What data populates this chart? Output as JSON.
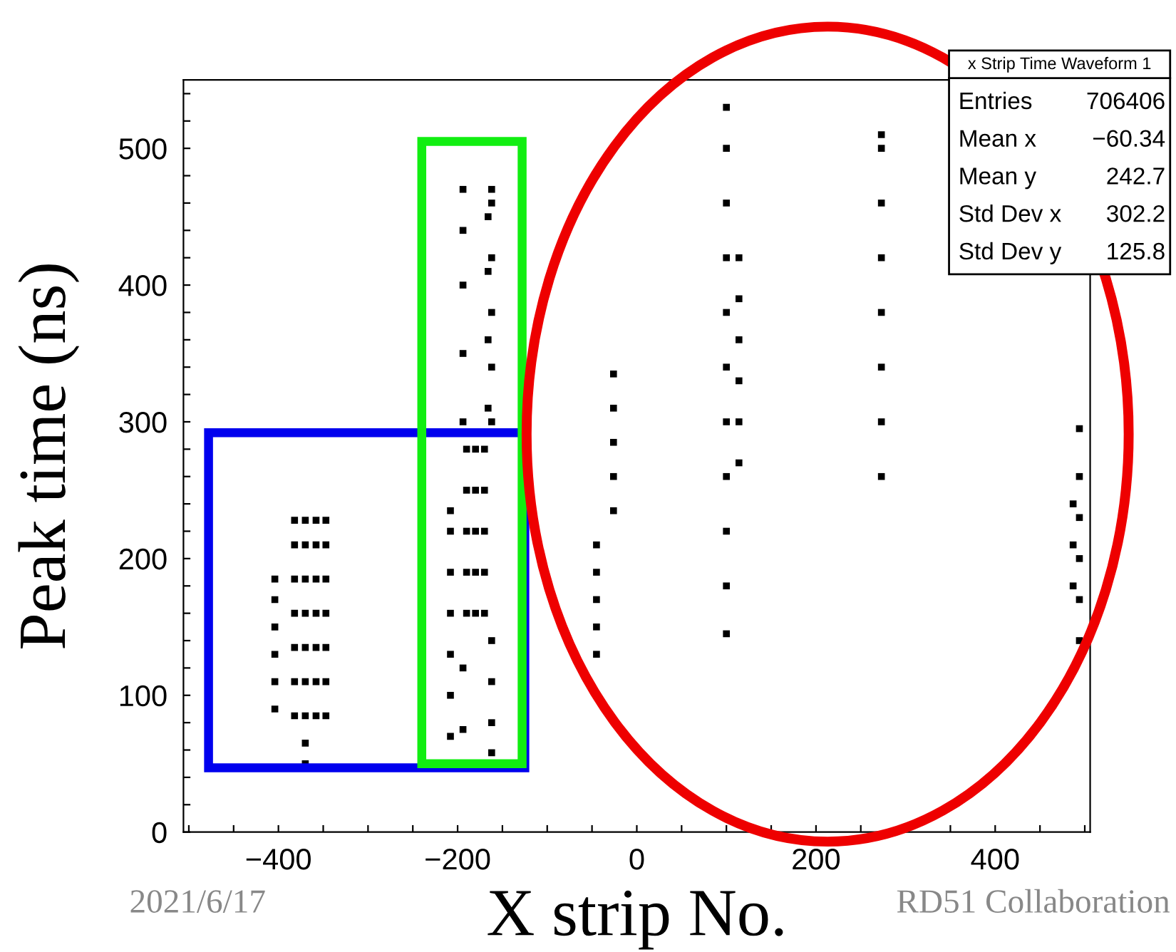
{
  "chart_data": {
    "type": "scatter",
    "xlabel": "X strip No.",
    "ylabel": "Peak time (ns)",
    "series": [
      {
        "color": "#000000",
        "x": [
          -404,
          -404,
          -404,
          -404,
          -404,
          -404,
          -382,
          -382,
          -382,
          -382,
          -382,
          -382,
          -382,
          -370,
          -370,
          -370,
          -370,
          -370,
          -370,
          -370,
          -370,
          -370,
          -358,
          -358,
          -358,
          -358,
          -358,
          -358,
          -358,
          -347,
          -347,
          -347,
          -347,
          -347,
          -347,
          -347,
          -208,
          -208,
          -208,
          -208,
          -208,
          -208,
          -208,
          -194,
          -194,
          -194,
          -194,
          -194,
          -194,
          -194,
          -190,
          -190,
          -190,
          -190,
          -190,
          -180,
          -180,
          -180,
          -180,
          -180,
          -170,
          -170,
          -170,
          -170,
          -170,
          -162,
          -162,
          -162,
          -162,
          -162,
          -162,
          -162,
          -162,
          -162,
          -162,
          -166,
          -166,
          -166,
          -166,
          -45,
          -45,
          -45,
          -45,
          -45,
          -26,
          -26,
          -26,
          -26,
          -26,
          100,
          100,
          100,
          100,
          100,
          100,
          100,
          100,
          100,
          100,
          100,
          114,
          114,
          114,
          114,
          114,
          114,
          273,
          273,
          273,
          273,
          273,
          273,
          273,
          273,
          494,
          494,
          494,
          494,
          494,
          494,
          487,
          487,
          487
        ],
        "values": [
          90,
          110,
          130,
          150,
          170,
          185,
          85,
          110,
          135,
          160,
          185,
          210,
          228,
          50,
          65,
          85,
          110,
          135,
          160,
          185,
          210,
          228,
          85,
          110,
          135,
          160,
          185,
          210,
          228,
          85,
          110,
          135,
          160,
          185,
          210,
          228,
          70,
          100,
          130,
          160,
          190,
          220,
          235,
          75,
          120,
          300,
          350,
          400,
          440,
          470,
          160,
          190,
          220,
          250,
          280,
          160,
          190,
          220,
          250,
          280,
          160,
          190,
          220,
          250,
          280,
          58,
          80,
          110,
          140,
          300,
          340,
          380,
          420,
          460,
          470,
          310,
          360,
          410,
          450,
          130,
          150,
          170,
          190,
          210,
          235,
          260,
          285,
          310,
          335,
          145,
          180,
          220,
          260,
          300,
          340,
          380,
          420,
          460,
          500,
          530,
          270,
          300,
          330,
          360,
          390,
          420,
          260,
          300,
          340,
          380,
          420,
          460,
          500,
          510,
          140,
          170,
          200,
          230,
          260,
          295,
          180,
          210,
          240
        ]
      }
    ],
    "marker": "square",
    "xlim": [
      -506,
      506
    ],
    "ylim": [
      0,
      550
    ],
    "xticks": [
      {
        "value": -500,
        "label": null
      },
      {
        "value": -450,
        "label": null
      },
      {
        "value": -400,
        "label": "−400"
      },
      {
        "value": -350,
        "label": null
      },
      {
        "value": -300,
        "label": null
      },
      {
        "value": -250,
        "label": null
      },
      {
        "value": -200,
        "label": "−200"
      },
      {
        "value": -150,
        "label": null
      },
      {
        "value": -100,
        "label": null
      },
      {
        "value": -50,
        "label": null
      },
      0,
      {
        "value": 50,
        "label": null
      },
      {
        "value": 100,
        "label": null
      },
      {
        "value": 150,
        "label": null
      },
      200,
      {
        "value": 250,
        "label": null
      },
      {
        "value": 300,
        "label": null
      },
      {
        "value": 350,
        "label": null
      },
      400,
      {
        "value": 450,
        "label": null
      },
      {
        "value": 500,
        "label": null
      }
    ],
    "yticks": [
      0,
      {
        "value": 20,
        "label": null
      },
      {
        "value": 40,
        "label": null
      },
      {
        "value": 60,
        "label": null
      },
      {
        "value": 80,
        "label": null
      },
      100,
      {
        "value": 120,
        "label": null
      },
      {
        "value": 140,
        "label": null
      },
      {
        "value": 160,
        "label": null
      },
      {
        "value": 180,
        "label": null
      },
      200,
      {
        "value": 220,
        "label": null
      },
      {
        "value": 240,
        "label": null
      },
      {
        "value": 260,
        "label": null
      },
      {
        "value": 280,
        "label": null
      },
      300,
      {
        "value": 320,
        "label": null
      },
      {
        "value": 340,
        "label": null
      },
      {
        "value": 360,
        "label": null
      },
      {
        "value": 380,
        "label": null
      },
      400,
      {
        "value": 420,
        "label": null
      },
      {
        "value": 440,
        "label": null
      },
      {
        "value": 460,
        "label": null
      },
      {
        "value": 480,
        "label": null
      },
      500,
      {
        "value": 520,
        "label": null
      },
      {
        "value": 540,
        "label": null
      }
    ],
    "grid": false,
    "annotations": [
      "x Strip Time Waveform 1",
      "Entries",
      "706406",
      "Mean x",
      "−60.34",
      "Mean y",
      "242.7",
      "Std Dev x",
      "302.2",
      "Std Dev y",
      "125.8",
      "2021/6/17",
      "RD51 Collaboration"
    ]
  }
}
